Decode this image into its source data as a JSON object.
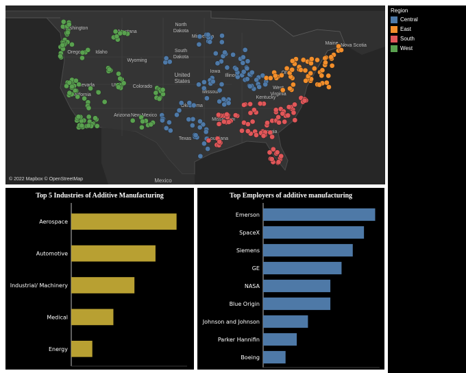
{
  "colors": {
    "Central": "#4e79a7",
    "East": "#f28e2b",
    "South": "#e15759",
    "West": "#59a14f",
    "bar_left": "#b8a032",
    "bar_right": "#4e79a7"
  },
  "legend": {
    "title": "Region",
    "items": [
      {
        "name": "Central",
        "color": "#4e79a7"
      },
      {
        "name": "East",
        "color": "#f28e2b"
      },
      {
        "name": "South",
        "color": "#e15759"
      },
      {
        "name": "West",
        "color": "#59a14f"
      }
    ]
  },
  "map": {
    "attribution": "© 2022 Mapbox © OpenStreetMap",
    "labels": [
      "Washington",
      "Montana",
      "North Dakota",
      "Minnesota",
      "Maine",
      "Nova Scotia",
      "Oregon",
      "Idaho",
      "South Dakota",
      "Wyoming",
      "United States",
      "Nevada",
      "Utah",
      "Colorado",
      "West Virginia",
      "Mississippi",
      "Louisiana",
      "Georgia",
      "Arizona",
      "New Mexico",
      "Oklahoma",
      "Texas",
      "Mexico",
      "Missouri",
      "Illinois",
      "Kentucky",
      "Iowa",
      "Ohio",
      "California"
    ]
  },
  "chart_data": [
    {
      "type": "bar",
      "title": "Top 5 Industries of Additive Manufacturing",
      "orientation": "horizontal",
      "categories": [
        "Aerospace",
        "Automotive",
        "Industrial/ Machinery",
        "Medical",
        "Energy"
      ],
      "values": [
        5,
        4,
        3,
        2,
        1
      ],
      "xlim": [
        0,
        5.5
      ]
    },
    {
      "type": "bar",
      "title": "Top Employers of additive manufacturing",
      "orientation": "horizontal",
      "categories": [
        "Emerson",
        "SpaceX",
        "Siemens",
        "GE",
        "NASA",
        "Blue Origin",
        "Johnson and Johnson",
        "Parker Hannifin",
        "Boeing"
      ],
      "values": [
        10,
        9,
        8,
        7,
        6,
        6,
        4,
        3,
        2
      ],
      "xlim": [
        0,
        10.4
      ]
    }
  ]
}
